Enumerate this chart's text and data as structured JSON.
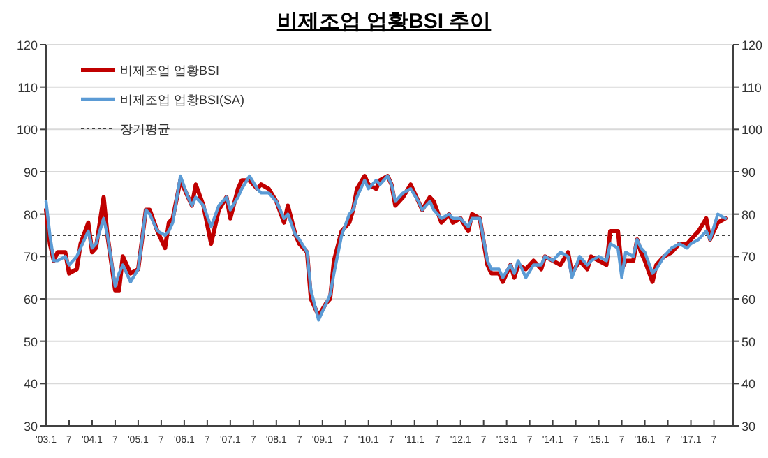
{
  "chart_data": {
    "type": "line",
    "title": "비제조업 업황BSI 추이",
    "x": [
      "2003-01",
      "2003-02",
      "2003-03",
      "2003-04",
      "2003-06",
      "2003-07",
      "2003-09",
      "2003-10",
      "2003-12",
      "2004-01",
      "2004-02",
      "2004-04",
      "2004-05",
      "2004-07",
      "2004-08",
      "2004-09",
      "2004-11",
      "2005-01",
      "2005-03",
      "2005-04",
      "2005-06",
      "2005-08",
      "2005-09",
      "2005-10",
      "2005-12",
      "2006-02",
      "2006-03",
      "2006-04",
      "2006-06",
      "2006-08",
      "2006-10",
      "2006-12",
      "2007-01",
      "2007-03",
      "2007-04",
      "2007-06",
      "2007-08",
      "2007-09",
      "2007-11",
      "2008-01",
      "2008-03",
      "2008-04",
      "2008-06",
      "2008-07",
      "2008-09",
      "2008-10",
      "2008-12",
      "2009-02",
      "2009-03",
      "2009-04",
      "2009-06",
      "2009-08",
      "2009-09",
      "2009-10",
      "2009-12",
      "2010-01",
      "2010-03",
      "2010-04",
      "2010-06",
      "2010-07",
      "2010-08",
      "2010-10",
      "2010-12",
      "2011-02",
      "2011-03",
      "2011-05",
      "2011-06",
      "2011-08",
      "2011-10",
      "2011-11",
      "2012-01",
      "2012-03",
      "2012-04",
      "2012-06",
      "2012-08",
      "2012-09",
      "2012-11",
      "2012-12",
      "2013-02",
      "2013-03",
      "2013-04",
      "2013-06",
      "2013-08",
      "2013-10",
      "2013-11",
      "2014-01",
      "2014-03",
      "2014-05",
      "2014-06",
      "2014-08",
      "2014-10",
      "2014-11",
      "2015-01",
      "2015-03",
      "2015-04",
      "2015-06",
      "2015-07",
      "2015-08",
      "2015-10",
      "2015-11",
      "2015-12",
      "2016-01",
      "2016-03",
      "2016-04",
      "2016-06",
      "2016-08",
      "2016-10",
      "2016-12",
      "2017-01",
      "2017-03",
      "2017-05",
      "2017-06",
      "2017-08",
      "2017-10"
    ],
    "series": [
      {
        "name": "비제조업 업황BSI",
        "color": "#c00000",
        "values": [
          81,
          73,
          69,
          71,
          71,
          66,
          67,
          73,
          78,
          71,
          72,
          84,
          75,
          62,
          62,
          70,
          66,
          67,
          81,
          81,
          76,
          72,
          78,
          79,
          88,
          84,
          82,
          87,
          82,
          73,
          81,
          84,
          79,
          86,
          88,
          88,
          86,
          87,
          86,
          83,
          78,
          82,
          75,
          73,
          71,
          60,
          56,
          59,
          60,
          69,
          76,
          78,
          81,
          86,
          89,
          87,
          86,
          88,
          89,
          87,
          82,
          84,
          87,
          83,
          81,
          84,
          83,
          78,
          80,
          78,
          79,
          76,
          80,
          79,
          68,
          66,
          66,
          64,
          68,
          65,
          68,
          67,
          69,
          67,
          70,
          69,
          68,
          71,
          66,
          69,
          67,
          70,
          69,
          68,
          76,
          76,
          67,
          69,
          69,
          74,
          71,
          69,
          64,
          68,
          70,
          71,
          73,
          73,
          74,
          76,
          79,
          74,
          78,
          79
        ]
      },
      {
        "name": "비제조업 업황BSI(SA)",
        "color": "#5b9bd5",
        "values": [
          83,
          75,
          69,
          69,
          70,
          68,
          70,
          72,
          76,
          72,
          73,
          79,
          75,
          63,
          66,
          68,
          64,
          67,
          81,
          80,
          76,
          75,
          76,
          78,
          89,
          84,
          82,
          84,
          82,
          77,
          82,
          84,
          81,
          84,
          86,
          89,
          86,
          85,
          85,
          83,
          79,
          80,
          75,
          74,
          71,
          62,
          55,
          59,
          61,
          66,
          75,
          80,
          81,
          84,
          88,
          86,
          88,
          87,
          89,
          87,
          83,
          85,
          86,
          83,
          81,
          83,
          81,
          79,
          80,
          79,
          79,
          77,
          79,
          79,
          69,
          67,
          67,
          65,
          68,
          66,
          69,
          65,
          68,
          68,
          70,
          69,
          71,
          70,
          65,
          70,
          68,
          69,
          70,
          69,
          73,
          72,
          65,
          71,
          70,
          74,
          72,
          71,
          66,
          67,
          70,
          72,
          73,
          72,
          73,
          74,
          76,
          74,
          80,
          79
        ]
      }
    ],
    "ref_lines": [
      {
        "axis": "y",
        "value": 75,
        "label": "장기평균",
        "color": "#404040",
        "line_style": "dotted"
      }
    ],
    "xlim": [
      "2003-01",
      "2017-12"
    ],
    "xticks": [
      {
        "value": "2003-01",
        "label": "'03.1"
      },
      {
        "value": "2003-07",
        "label": "7"
      },
      {
        "value": "2004-01",
        "label": "'04.1"
      },
      {
        "value": "2004-07",
        "label": "7"
      },
      {
        "value": "2005-01",
        "label": "'05.1"
      },
      {
        "value": "2005-07",
        "label": "7"
      },
      {
        "value": "2006-01",
        "label": "'06.1"
      },
      {
        "value": "2006-07",
        "label": "7"
      },
      {
        "value": "2007-01",
        "label": "'07.1"
      },
      {
        "value": "2007-07",
        "label": "7"
      },
      {
        "value": "2008-01",
        "label": "'08.1"
      },
      {
        "value": "2008-07",
        "label": "7"
      },
      {
        "value": "2009-01",
        "label": "'09.1"
      },
      {
        "value": "2009-07",
        "label": "7"
      },
      {
        "value": "2010-01",
        "label": "'10.1"
      },
      {
        "value": "2010-07",
        "label": "7"
      },
      {
        "value": "2011-01",
        "label": "'11.1"
      },
      {
        "value": "2011-07",
        "label": "7"
      },
      {
        "value": "2012-01",
        "label": "'12.1"
      },
      {
        "value": "2012-07",
        "label": "7"
      },
      {
        "value": "2013-01",
        "label": "'13.1"
      },
      {
        "value": "2013-07",
        "label": "7"
      },
      {
        "value": "2014-01",
        "label": "'14.1"
      },
      {
        "value": "2014-07",
        "label": "7"
      },
      {
        "value": "2015-01",
        "label": "'15.1"
      },
      {
        "value": "2015-07",
        "label": "7"
      },
      {
        "value": "2016-01",
        "label": "'16.1"
      },
      {
        "value": "2016-07",
        "label": "7"
      },
      {
        "value": "2017-01",
        "label": "'17.1"
      },
      {
        "value": "2017-07",
        "label": "7"
      }
    ],
    "ylim": [
      30,
      120
    ],
    "yticks": [
      30,
      40,
      50,
      60,
      70,
      80,
      90,
      100,
      110,
      120
    ],
    "y2lim": [
      30,
      120
    ],
    "y2ticks": [
      30,
      40,
      50,
      60,
      70,
      80,
      90,
      100,
      110,
      120
    ],
    "grid": "y",
    "legend": "top left"
  }
}
